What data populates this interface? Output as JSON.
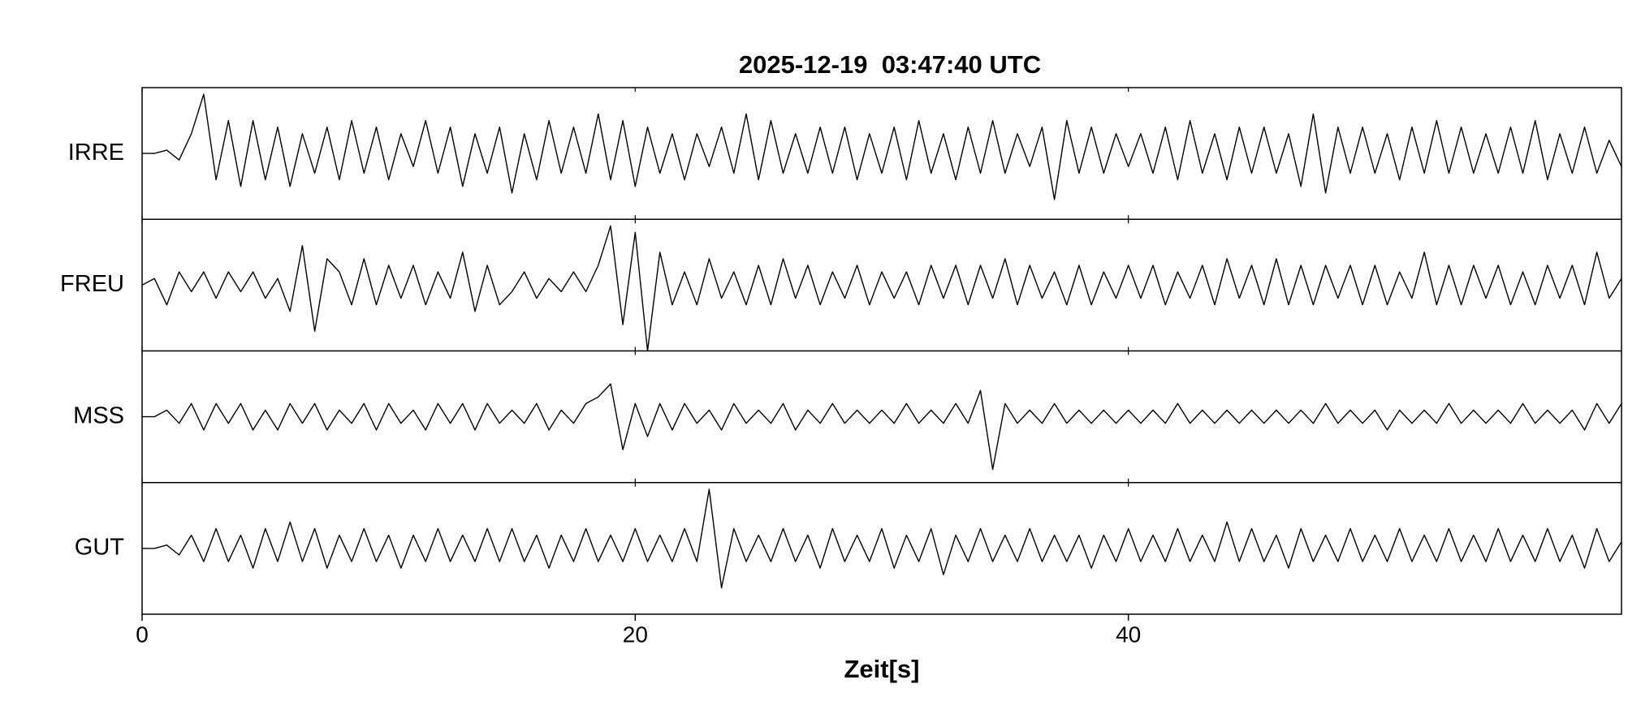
{
  "chart_data": {
    "type": "line",
    "title": "2025-12-19  03:47:40 UTC",
    "xlabel": "Zeit[s]",
    "x": [
      0,
      0.5,
      1,
      1.5,
      2,
      2.5,
      3,
      3.5,
      4,
      4.5,
      5,
      5.5,
      6,
      6.5,
      7,
      7.5,
      8,
      8.5,
      9,
      9.5,
      10,
      10.5,
      11,
      11.5,
      12,
      12.5,
      13,
      13.5,
      14,
      14.5,
      15,
      15.5,
      16,
      16.5,
      17,
      17.5,
      18,
      18.5,
      19,
      19.5,
      20,
      20.5,
      21,
      21.5,
      22,
      22.5,
      23,
      23.5,
      24,
      24.5,
      25,
      25.5,
      26,
      26.5,
      27,
      27.5,
      28,
      28.5,
      29,
      29.5,
      30,
      30.5,
      31,
      31.5,
      32,
      32.5,
      33,
      33.5,
      34,
      34.5,
      35,
      35.5,
      36,
      36.5,
      37,
      37.5,
      38,
      38.5,
      39,
      39.5,
      40,
      40.5,
      41,
      41.5,
      42,
      42.5,
      43,
      43.5,
      44,
      44.5,
      45,
      45.5,
      46,
      46.5,
      47,
      47.5,
      48,
      48.5,
      49,
      49.5,
      50,
      50.5,
      51,
      51.5,
      52,
      52.5,
      53,
      53.5,
      54,
      54.5,
      55,
      55.5,
      56,
      56.5,
      57,
      57.5,
      58,
      58.5,
      59,
      59.5,
      60
    ],
    "xlim": [
      0,
      60
    ],
    "xticks": [
      0,
      20,
      40
    ],
    "ylim": [
      -1,
      1
    ],
    "series": [
      {
        "name": "IRRE",
        "color": "#000000",
        "values": [
          0,
          0,
          0.05,
          -0.1,
          0.3,
          0.9,
          -0.4,
          0.5,
          -0.5,
          0.5,
          -0.4,
          0.4,
          -0.5,
          0.3,
          -0.3,
          0.4,
          -0.4,
          0.5,
          -0.3,
          0.4,
          -0.4,
          0.3,
          -0.2,
          0.5,
          -0.3,
          0.4,
          -0.5,
          0.3,
          -0.3,
          0.4,
          -0.6,
          0.3,
          -0.4,
          0.5,
          -0.3,
          0.4,
          -0.3,
          0.6,
          -0.4,
          0.5,
          -0.5,
          0.4,
          -0.3,
          0.3,
          -0.4,
          0.3,
          -0.2,
          0.4,
          -0.3,
          0.6,
          -0.4,
          0.5,
          -0.3,
          0.3,
          -0.3,
          0.4,
          -0.3,
          0.4,
          -0.4,
          0.3,
          -0.3,
          0.4,
          -0.4,
          0.5,
          -0.3,
          0.3,
          -0.4,
          0.4,
          -0.3,
          0.5,
          -0.3,
          0.3,
          -0.2,
          0.4,
          -0.7,
          0.5,
          -0.3,
          0.4,
          -0.3,
          0.3,
          -0.2,
          0.3,
          -0.3,
          0.4,
          -0.4,
          0.5,
          -0.3,
          0.3,
          -0.4,
          0.4,
          -0.3,
          0.4,
          -0.3,
          0.3,
          -0.5,
          0.6,
          -0.6,
          0.4,
          -0.3,
          0.4,
          -0.3,
          0.3,
          -0.4,
          0.4,
          -0.3,
          0.5,
          -0.3,
          0.4,
          -0.3,
          0.3,
          -0.3,
          0.4,
          -0.3,
          0.5,
          -0.4,
          0.3,
          -0.3,
          0.4,
          -0.3,
          0.2,
          -0.2
        ]
      },
      {
        "name": "FREU",
        "color": "#000000",
        "values": [
          0,
          0.1,
          -0.3,
          0.2,
          -0.1,
          0.2,
          -0.2,
          0.2,
          -0.1,
          0.2,
          -0.2,
          0.1,
          -0.4,
          0.6,
          -0.7,
          0.4,
          0.2,
          -0.3,
          0.4,
          -0.3,
          0.3,
          -0.2,
          0.3,
          -0.3,
          0.2,
          -0.2,
          0.5,
          -0.4,
          0.3,
          -0.3,
          -0.1,
          0.2,
          -0.2,
          0.1,
          -0.1,
          0.2,
          -0.1,
          0.3,
          0.9,
          -0.6,
          0.8,
          -1.0,
          0.5,
          -0.3,
          0.2,
          -0.3,
          0.4,
          -0.2,
          0.2,
          -0.3,
          0.3,
          -0.3,
          0.4,
          -0.2,
          0.3,
          -0.3,
          0.2,
          -0.2,
          0.3,
          -0.3,
          0.2,
          -0.2,
          0.2,
          -0.3,
          0.3,
          -0.2,
          0.3,
          -0.3,
          0.3,
          -0.2,
          0.4,
          -0.3,
          0.3,
          -0.2,
          0.2,
          -0.3,
          0.3,
          -0.3,
          0.2,
          -0.2,
          0.3,
          -0.2,
          0.3,
          -0.3,
          0.2,
          -0.2,
          0.3,
          -0.3,
          0.4,
          -0.2,
          0.3,
          -0.3,
          0.4,
          -0.3,
          0.3,
          -0.3,
          0.3,
          -0.2,
          0.3,
          -0.3,
          0.3,
          -0.3,
          0.2,
          -0.2,
          0.5,
          -0.3,
          0.3,
          -0.3,
          0.3,
          -0.2,
          0.3,
          -0.3,
          0.2,
          -0.3,
          0.3,
          -0.2,
          0.3,
          -0.3,
          0.5,
          -0.2,
          0.1
        ]
      },
      {
        "name": "MSS",
        "color": "#000000",
        "values": [
          0,
          0,
          0.1,
          -0.1,
          0.2,
          -0.2,
          0.2,
          -0.1,
          0.2,
          -0.2,
          0.1,
          -0.2,
          0.2,
          -0.1,
          0.2,
          -0.2,
          0.1,
          -0.1,
          0.2,
          -0.2,
          0.2,
          -0.1,
          0.1,
          -0.2,
          0.2,
          -0.1,
          0.2,
          -0.2,
          0.2,
          -0.1,
          0.1,
          -0.1,
          0.2,
          -0.2,
          0.1,
          -0.1,
          0.2,
          0.3,
          0.5,
          -0.5,
          0.2,
          -0.3,
          0.2,
          -0.2,
          0.2,
          -0.1,
          0.1,
          -0.2,
          0.2,
          -0.1,
          0.1,
          -0.1,
          0.2,
          -0.2,
          0.1,
          -0.1,
          0.2,
          -0.1,
          0.1,
          -0.1,
          0.1,
          -0.1,
          0.2,
          -0.1,
          0.1,
          -0.1,
          0.2,
          -0.1,
          0.4,
          -0.8,
          0.2,
          -0.1,
          0.1,
          -0.1,
          0.2,
          -0.1,
          0.1,
          -0.1,
          0.1,
          -0.1,
          0.1,
          -0.1,
          0.1,
          -0.1,
          0.2,
          -0.1,
          0.1,
          -0.1,
          0.1,
          -0.1,
          0.1,
          -0.1,
          0.1,
          -0.1,
          0.1,
          -0.1,
          0.2,
          -0.1,
          0.1,
          -0.1,
          0.1,
          -0.2,
          0.1,
          -0.1,
          0.1,
          -0.1,
          0.2,
          -0.1,
          0.1,
          -0.1,
          0.1,
          -0.1,
          0.2,
          -0.1,
          0.1,
          -0.1,
          0.1,
          -0.2,
          0.2,
          -0.1,
          0.2
        ]
      },
      {
        "name": "GUT",
        "color": "#000000",
        "values": [
          0,
          0,
          0.05,
          -0.1,
          0.2,
          -0.2,
          0.3,
          -0.2,
          0.2,
          -0.3,
          0.3,
          -0.2,
          0.4,
          -0.2,
          0.3,
          -0.3,
          0.2,
          -0.2,
          0.3,
          -0.2,
          0.2,
          -0.3,
          0.2,
          -0.2,
          0.3,
          -0.2,
          0.2,
          -0.2,
          0.3,
          -0.2,
          0.3,
          -0.2,
          0.2,
          -0.3,
          0.2,
          -0.2,
          0.3,
          -0.2,
          0.2,
          -0.2,
          0.3,
          -0.2,
          0.2,
          -0.2,
          0.3,
          -0.2,
          0.9,
          -0.6,
          0.3,
          -0.2,
          0.2,
          -0.2,
          0.3,
          -0.2,
          0.2,
          -0.3,
          0.3,
          -0.2,
          0.2,
          -0.2,
          0.3,
          -0.3,
          0.2,
          -0.2,
          0.3,
          -0.4,
          0.2,
          -0.2,
          0.3,
          -0.2,
          0.2,
          -0.2,
          0.3,
          -0.2,
          0.2,
          -0.2,
          0.2,
          -0.3,
          0.2,
          -0.2,
          0.3,
          -0.2,
          0.2,
          -0.2,
          0.3,
          -0.2,
          0.2,
          -0.2,
          0.4,
          -0.2,
          0.3,
          -0.2,
          0.2,
          -0.3,
          0.3,
          -0.2,
          0.2,
          -0.2,
          0.3,
          -0.2,
          0.2,
          -0.2,
          0.3,
          -0.2,
          0.2,
          -0.2,
          0.3,
          -0.2,
          0.2,
          -0.2,
          0.3,
          -0.2,
          0.2,
          -0.2,
          0.3,
          -0.2,
          0.2,
          -0.3,
          0.3,
          -0.2,
          0.1
        ]
      }
    ]
  }
}
